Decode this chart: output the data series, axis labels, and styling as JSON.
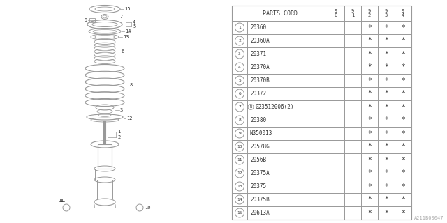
{
  "bg_color": "#ffffff",
  "table_header": "PARTS CORD",
  "col_headers": [
    "9\n0",
    "9\n1",
    "9\n2",
    "9\n3",
    "9\n4"
  ],
  "rows": [
    {
      "num": "1",
      "code": "20360",
      "stars": [
        0,
        0,
        1,
        1,
        1
      ]
    },
    {
      "num": "2",
      "code": "20360A",
      "stars": [
        0,
        0,
        1,
        1,
        1
      ]
    },
    {
      "num": "3",
      "code": "20371",
      "stars": [
        0,
        0,
        1,
        1,
        1
      ]
    },
    {
      "num": "4",
      "code": "20370A",
      "stars": [
        0,
        0,
        1,
        1,
        1
      ]
    },
    {
      "num": "5",
      "code": "20370B",
      "stars": [
        0,
        0,
        1,
        1,
        1
      ]
    },
    {
      "num": "6",
      "code": "20372",
      "stars": [
        0,
        0,
        1,
        1,
        1
      ]
    },
    {
      "num": "7",
      "code": "N023512006(2)",
      "stars": [
        0,
        0,
        1,
        1,
        1
      ],
      "n_circle": true
    },
    {
      "num": "8",
      "code": "20380",
      "stars": [
        0,
        0,
        1,
        1,
        1
      ]
    },
    {
      "num": "9",
      "code": "N350013",
      "stars": [
        0,
        0,
        1,
        1,
        1
      ]
    },
    {
      "num": "10",
      "code": "20578G",
      "stars": [
        0,
        0,
        1,
        1,
        1
      ]
    },
    {
      "num": "11",
      "code": "2056B",
      "stars": [
        0,
        0,
        1,
        1,
        1
      ]
    },
    {
      "num": "12",
      "code": "20375A",
      "stars": [
        0,
        0,
        1,
        1,
        1
      ]
    },
    {
      "num": "13",
      "code": "20375",
      "stars": [
        0,
        0,
        1,
        1,
        1
      ]
    },
    {
      "num": "14",
      "code": "20375B",
      "stars": [
        0,
        0,
        1,
        1,
        1
      ]
    },
    {
      "num": "15",
      "code": "20613A",
      "stars": [
        0,
        0,
        1,
        1,
        1
      ]
    }
  ],
  "watermark": "A211B00047",
  "line_color": "#999999",
  "text_color": "#333333"
}
